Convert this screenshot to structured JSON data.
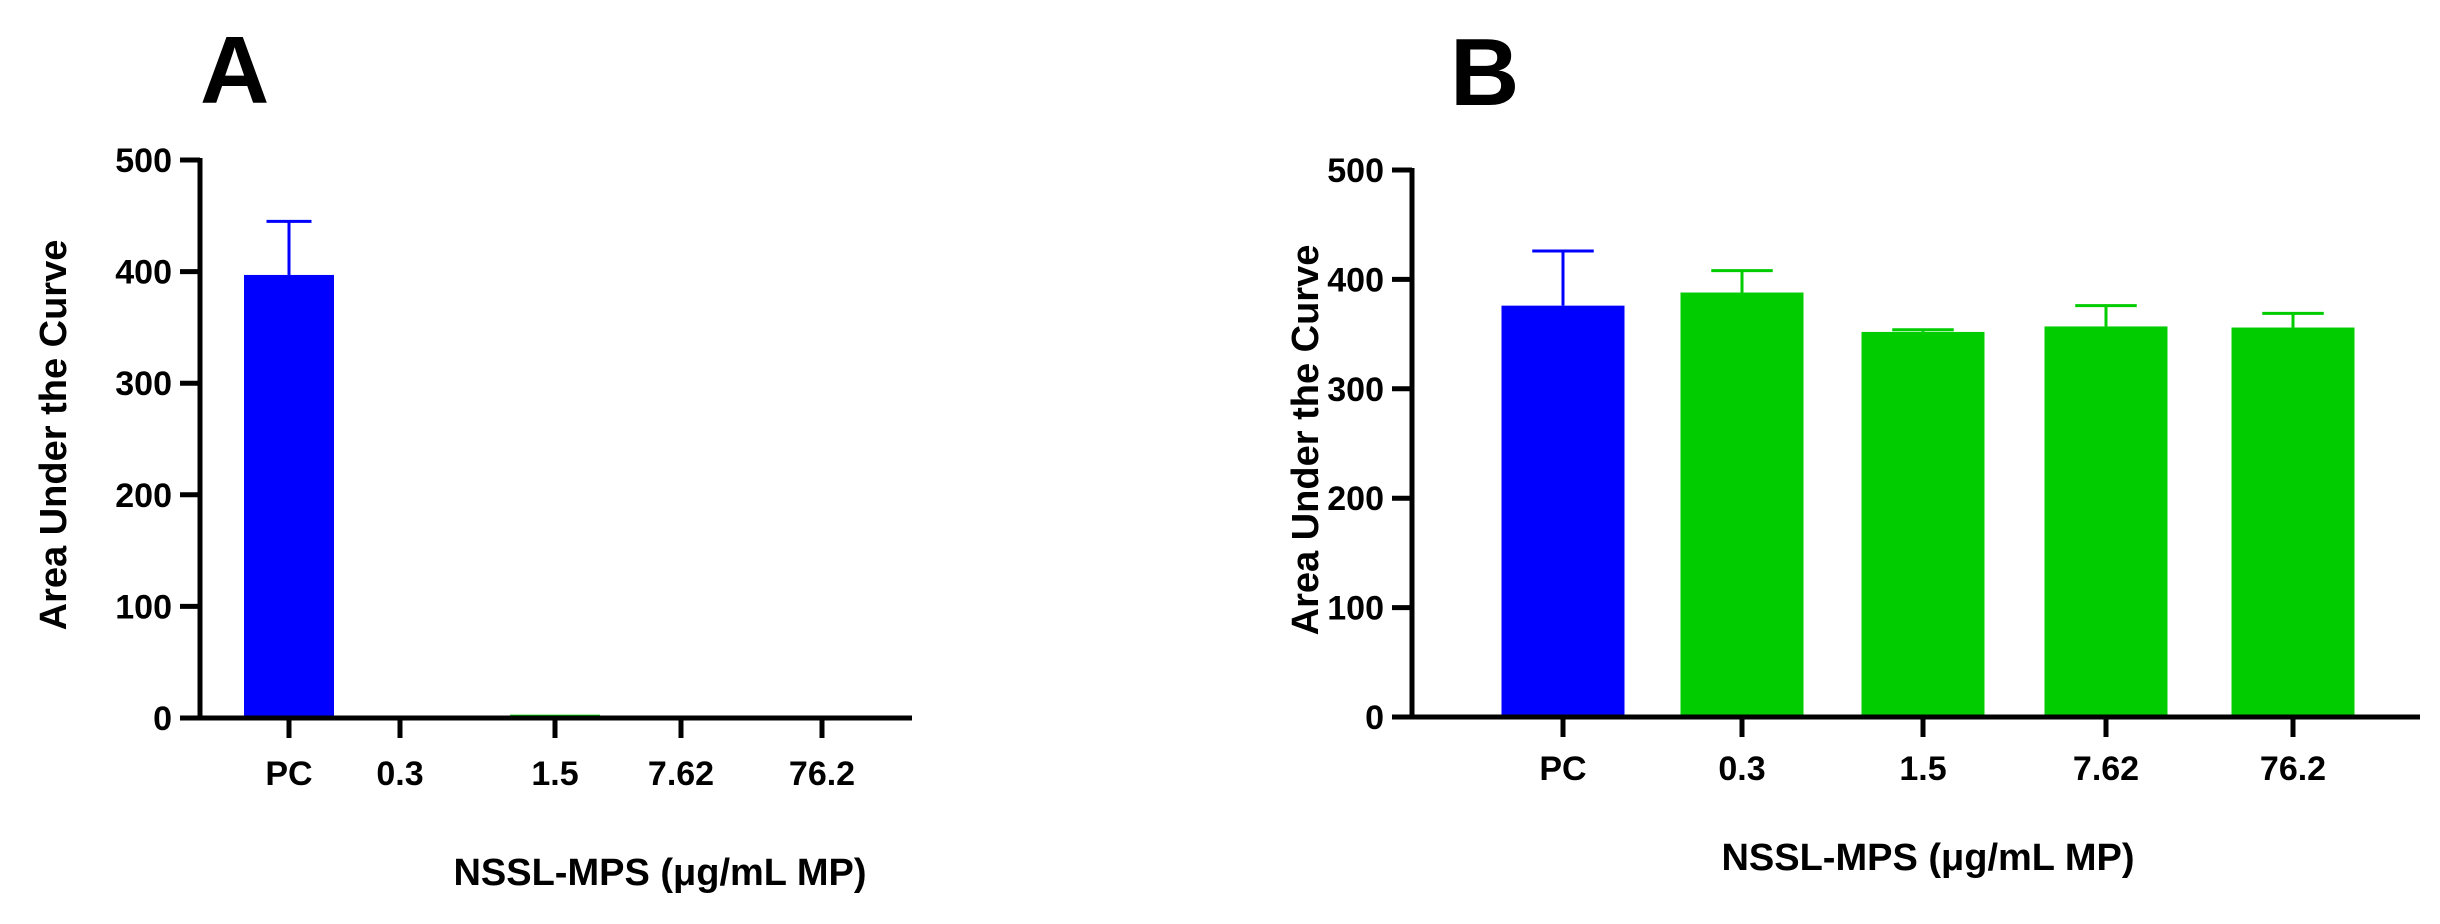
{
  "chart_data": [
    {
      "panel": "A",
      "type": "bar",
      "categories": [
        "PC",
        "0.3",
        "1.5",
        "7.62",
        "76.2"
      ],
      "values": [
        397,
        2,
        3,
        0,
        0
      ],
      "errors": [
        48,
        0,
        0,
        0,
        0
      ],
      "bar_colors": [
        "#0000ff",
        "#00cc00",
        "#00cc00",
        "#00cc00",
        "#00cc00"
      ],
      "xlabel": "NSSL-MPS (μg/mL MP)",
      "ylabel": "Area Under the Curve",
      "ylim": [
        0,
        500
      ],
      "yticks": [
        "0",
        "100",
        "200",
        "300",
        "400",
        "500"
      ],
      "grid": false
    },
    {
      "panel": "B",
      "type": "bar",
      "categories": [
        "PC",
        "0.3",
        "1.5",
        "7.62",
        "76.2"
      ],
      "values": [
        376,
        388,
        352,
        357,
        356
      ],
      "errors": [
        50,
        20,
        2,
        19,
        13
      ],
      "bar_colors": [
        "#0000ff",
        "#00cc00",
        "#00cc00",
        "#00cc00",
        "#00cc00"
      ],
      "xlabel": "NSSL-MPS (μg/mL MP)",
      "ylabel": "Area Under the Curve",
      "ylim": [
        0,
        500
      ],
      "yticks": [
        "0",
        "100",
        "200",
        "300",
        "400",
        "500"
      ],
      "grid": false
    }
  ]
}
